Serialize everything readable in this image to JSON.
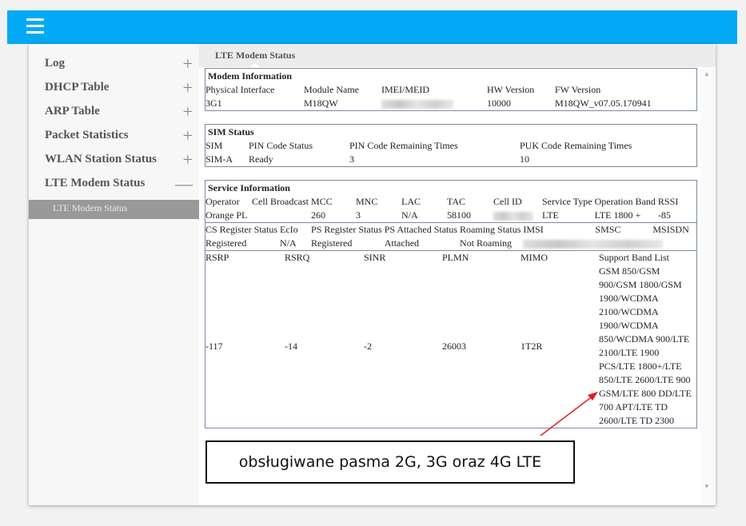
{
  "header": {
    "menu_icon": "hamburger-menu-icon",
    "color": "#03a9f4"
  },
  "sidebar": {
    "items": [
      {
        "label": "Log",
        "toggle": "+"
      },
      {
        "label": "DHCP Table",
        "toggle": "+"
      },
      {
        "label": "ARP Table",
        "toggle": "+"
      },
      {
        "label": "Packet Statistics",
        "toggle": "+"
      },
      {
        "label": "WLAN Station Status",
        "toggle": "+"
      },
      {
        "label": "LTE Modem Status",
        "toggle": "—"
      }
    ],
    "subitems": [
      {
        "label": "LTE Modem Status"
      }
    ]
  },
  "tab": {
    "label": "LTE Modem Status"
  },
  "modem": {
    "title": "Modem Information",
    "headers": [
      "Physical Interface",
      "Module Name",
      "IMEI/MEID",
      "HW Version",
      "FW Version"
    ],
    "values": [
      "3G1",
      "M18QW",
      "",
      "10000",
      "M18QW_v07.05.170941"
    ]
  },
  "sim": {
    "title": "SIM Status",
    "headers": [
      "SIM",
      "PIN Code Status",
      "PIN Code Remaining Times",
      "PUK Code Remaining Times"
    ],
    "values": [
      "SIM-A",
      "Ready",
      "3",
      "10"
    ]
  },
  "service": {
    "title": "Service Information",
    "row1_headers": [
      "Operator",
      "Cell Broadcast",
      "MCC",
      "MNC",
      "LAC",
      "TAC",
      "Cell ID",
      "Service Type",
      "Operation Band",
      "RSSI"
    ],
    "row1_values": [
      "Orange PL",
      "",
      "260",
      "3",
      "N/A",
      "58100",
      "",
      "LTE",
      "LTE 1800 +",
      "-85"
    ],
    "row2_headers": [
      "CS Register Status",
      "EcIo",
      "PS Register Status",
      "PS Attached Status",
      "Roaming Status",
      "IMSI",
      "SMSC",
      "MSISDN"
    ],
    "row2_values": [
      "Registered",
      "N/A",
      "Registered",
      "Attached",
      "Not Roaming",
      "",
      "",
      ""
    ],
    "row3_headers": [
      "RSRP",
      "RSRQ",
      "SINR",
      "PLMN",
      "MIMO",
      "Support Band List"
    ],
    "row3_values": [
      "-117",
      "-14",
      "-2",
      "26003",
      "1T2R"
    ],
    "band_list_lines": [
      "GSM 850/GSM",
      "900/GSM 1800/GSM",
      "1900/WCDMA",
      "2100/WCDMA",
      "1900/WCDMA",
      "850/WCDMA 900/LTE",
      "2100/LTE 1900",
      "PCS/LTE 1800+/LTE",
      "850/LTE 2600/LTE 900",
      "GSM/LTE 800 DD/LTE",
      "700 APT/LTE TD",
      "2600/LTE TD 2300"
    ]
  },
  "annotation": {
    "text": "obsługiwane pasma 2G, 3G oraz 4G LTE",
    "arrow_color": "#e0201e"
  }
}
